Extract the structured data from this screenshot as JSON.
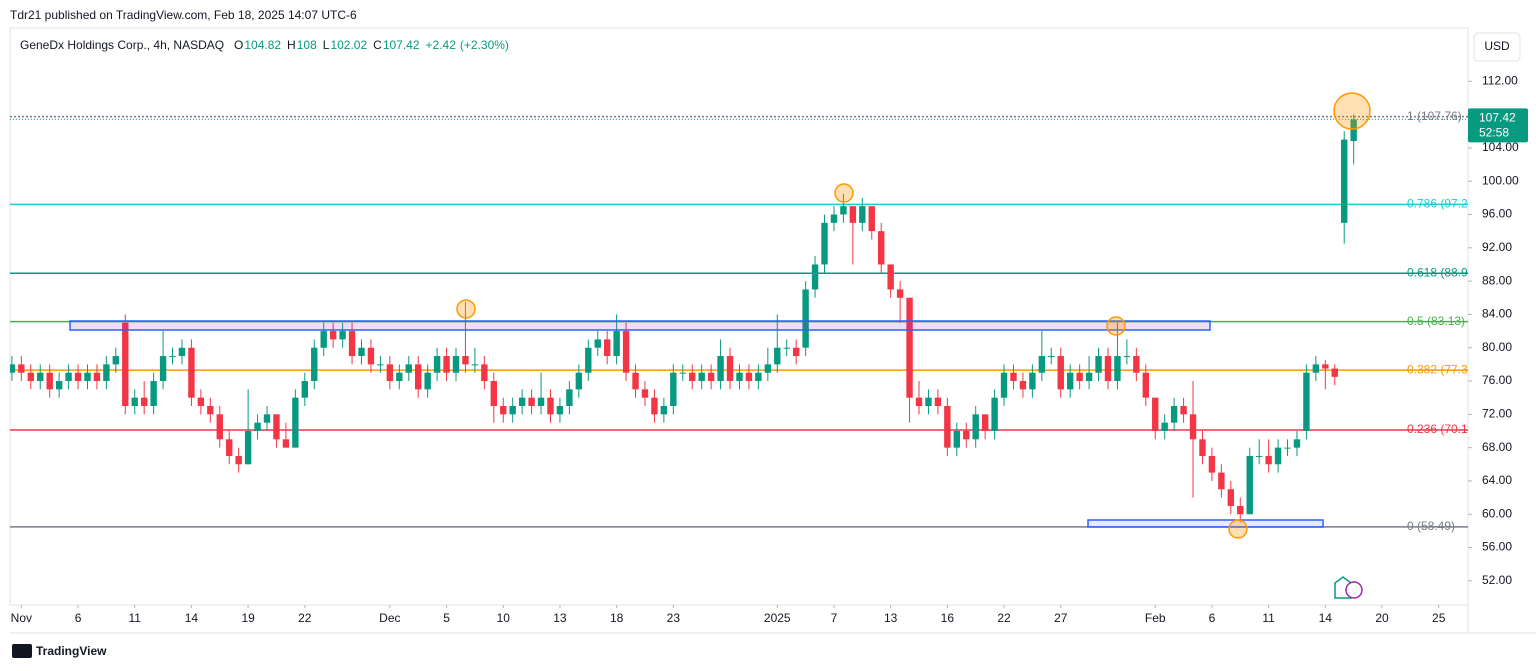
{
  "chart_data": {
    "type": "candlestick",
    "attribution": "Tdr21 published on TradingView.com, Feb 18, 2025 14:07 UTC-6",
    "legend": {
      "symbol": "GeneDx Holdings Corp., 4h, NASDAQ",
      "open": {
        "label": "O",
        "value": 104.82
      },
      "high": {
        "label": "H",
        "value": 108.0
      },
      "low": {
        "label": "L",
        "value": 102.02
      },
      "close": {
        "label": "C",
        "value": 107.42
      },
      "change": {
        "value": 2.42,
        "label": "+2.42"
      },
      "change_pct": {
        "value": 2.3,
        "label": "(+2.30%)"
      }
    },
    "currency": "USD",
    "countdown": "52:58",
    "footer": "TradingView",
    "up_color": "#089981",
    "down_color": "#f23645",
    "ylim": [
      49.1,
      118.4
    ],
    "yticks": [
      {
        "value": 52,
        "label": "52.00"
      },
      {
        "value": 56,
        "label": "56.00"
      },
      {
        "value": 60,
        "label": "60.00"
      },
      {
        "value": 64,
        "label": "64.00"
      },
      {
        "value": 68,
        "label": "68.00"
      },
      {
        "value": 72,
        "label": "72.00"
      },
      {
        "value": 76,
        "label": "76.00"
      },
      {
        "value": 80,
        "label": "80.00"
      },
      {
        "value": 84,
        "label": "84.00"
      },
      {
        "value": 88,
        "label": "88.00"
      },
      {
        "value": 92,
        "label": "92.00"
      },
      {
        "value": 96,
        "label": "96.00"
      },
      {
        "value": 100,
        "label": "100.00"
      },
      {
        "value": 104,
        "label": "104.00"
      },
      {
        "value": 108,
        "label": "108.00"
      },
      {
        "value": 112,
        "label": "112.00"
      }
    ],
    "xlim": [
      -0.2,
      154.1
    ],
    "xticks": [
      {
        "value": 1,
        "label": "Nov"
      },
      {
        "value": 7,
        "label": "6"
      },
      {
        "value": 13,
        "label": "11"
      },
      {
        "value": 19,
        "label": "14"
      },
      {
        "value": 25,
        "label": "19"
      },
      {
        "value": 31,
        "label": "22"
      },
      {
        "value": 40,
        "label": "Dec"
      },
      {
        "value": 46,
        "label": "5"
      },
      {
        "value": 52,
        "label": "10"
      },
      {
        "value": 58,
        "label": "13"
      },
      {
        "value": 64,
        "label": "18"
      },
      {
        "value": 70,
        "label": "23"
      },
      {
        "value": 81,
        "label": "2025"
      },
      {
        "value": 87,
        "label": "7"
      },
      {
        "value": 93,
        "label": "13"
      },
      {
        "value": 99,
        "label": "16"
      },
      {
        "value": 105,
        "label": "22"
      },
      {
        "value": 111,
        "label": "27"
      },
      {
        "value": 121,
        "label": "Feb"
      },
      {
        "value": 127,
        "label": "6"
      },
      {
        "value": 133,
        "label": "11"
      },
      {
        "value": 139,
        "label": "14"
      },
      {
        "value": 145,
        "label": "20"
      },
      {
        "value": 151,
        "label": "25"
      }
    ],
    "levels": [
      {
        "value": 107.76,
        "label": "1 (107.76)",
        "color": "#787b86"
      },
      {
        "value": 97.22,
        "label": "0.786 (97.2",
        "color": "#26c6da"
      },
      {
        "value": 88.94,
        "label": "0.618 (88.9",
        "color": "#089981"
      },
      {
        "value": 83.13,
        "label": "0.5 (83.13)",
        "color": "#4caf50"
      },
      {
        "value": 77.31,
        "label": "0.382 (77.3",
        "color": "#ff9800"
      },
      {
        "value": 70.12,
        "label": "0.236 (70.1",
        "color": "#f23645"
      },
      {
        "value": 58.49,
        "label": "0 (58.49)",
        "color": "#787b86"
      }
    ],
    "ohlc": [
      [
        77,
        79,
        76,
        78
      ],
      [
        78,
        79,
        76,
        77
      ],
      [
        77,
        78,
        75,
        76
      ],
      [
        76,
        78,
        75,
        77
      ],
      [
        77,
        78,
        74,
        75
      ],
      [
        75,
        77,
        74,
        76
      ],
      [
        76,
        78,
        75,
        77
      ],
      [
        77,
        78,
        75,
        76
      ],
      [
        76,
        78,
        75,
        77
      ],
      [
        77,
        78,
        75,
        76
      ],
      [
        76,
        79,
        75,
        78
      ],
      [
        78,
        80,
        77,
        79
      ],
      [
        83,
        84,
        72,
        73
      ],
      [
        73,
        75,
        72,
        74
      ],
      [
        74,
        76,
        72,
        73
      ],
      [
        73,
        77,
        72,
        76
      ],
      [
        76,
        82,
        75,
        79
      ],
      [
        79,
        80,
        78,
        79
      ],
      [
        79,
        81,
        78,
        80
      ],
      [
        80,
        81,
        73,
        74
      ],
      [
        74,
        75,
        72,
        73
      ],
      [
        73,
        74,
        71,
        72
      ],
      [
        72,
        73,
        68,
        69
      ],
      [
        69,
        70,
        66,
        67
      ],
      [
        67,
        68,
        65,
        66
      ],
      [
        66,
        75,
        66,
        70
      ],
      [
        70,
        72,
        69,
        71
      ],
      [
        71,
        73,
        70,
        72
      ],
      [
        72,
        72,
        68,
        69
      ],
      [
        69,
        71,
        68,
        68
      ],
      [
        68,
        75,
        68,
        74
      ],
      [
        74,
        77,
        73,
        76
      ],
      [
        76,
        81,
        75,
        80
      ],
      [
        80,
        83,
        79,
        82
      ],
      [
        82,
        83,
        80,
        81
      ],
      [
        81,
        83,
        80,
        82
      ],
      [
        82,
        83,
        78,
        79
      ],
      [
        79,
        81,
        78,
        80
      ],
      [
        80,
        81,
        77,
        78
      ],
      [
        78,
        79,
        77,
        78
      ],
      [
        78,
        79,
        75,
        76
      ],
      [
        76,
        78,
        75,
        77
      ],
      [
        77,
        79,
        76,
        78
      ],
      [
        78,
        79,
        74,
        75
      ],
      [
        75,
        78,
        74,
        77
      ],
      [
        77,
        80,
        76,
        79
      ],
      [
        79,
        80,
        76,
        77
      ],
      [
        77,
        80,
        76,
        79
      ],
      [
        79,
        85.5,
        77,
        78
      ],
      [
        78,
        80,
        77,
        78
      ],
      [
        78,
        79,
        75,
        76
      ],
      [
        76,
        77,
        71,
        73
      ],
      [
        73,
        74,
        71,
        72
      ],
      [
        72,
        74,
        71,
        73
      ],
      [
        73,
        75,
        72,
        74
      ],
      [
        74,
        75,
        72,
        73
      ],
      [
        73,
        77,
        72,
        74
      ],
      [
        74,
        75,
        71,
        72
      ],
      [
        72,
        74,
        71,
        73
      ],
      [
        73,
        76,
        72,
        75
      ],
      [
        75,
        78,
        74,
        77
      ],
      [
        77,
        81,
        76,
        80
      ],
      [
        80,
        82,
        79,
        81
      ],
      [
        81,
        82,
        78,
        79
      ],
      [
        79,
        84,
        78,
        82
      ],
      [
        82,
        83,
        76,
        77
      ],
      [
        77,
        78,
        74,
        75
      ],
      [
        75,
        76,
        73,
        74
      ],
      [
        74,
        75,
        71,
        72
      ],
      [
        72,
        74,
        71,
        73
      ],
      [
        73,
        78,
        72,
        77
      ],
      [
        77,
        78,
        76,
        77
      ],
      [
        77,
        78,
        75,
        76
      ],
      [
        76,
        78,
        75,
        77
      ],
      [
        77,
        78,
        75,
        76
      ],
      [
        76,
        81,
        75,
        79
      ],
      [
        79,
        80,
        75,
        76
      ],
      [
        76,
        78,
        75,
        77
      ],
      [
        77,
        78,
        75,
        76
      ],
      [
        76,
        78,
        75,
        77
      ],
      [
        77,
        80,
        76,
        78
      ],
      [
        78,
        84,
        77,
        80
      ],
      [
        80,
        81,
        79,
        80
      ],
      [
        80,
        81,
        78,
        79
      ],
      [
        80,
        88,
        79,
        87
      ],
      [
        87,
        91,
        86,
        90
      ],
      [
        90,
        96,
        89,
        95
      ],
      [
        95,
        97,
        94,
        96
      ],
      [
        96,
        98.5,
        95,
        97
      ],
      [
        97,
        97,
        90,
        95
      ],
      [
        95,
        98,
        94,
        97
      ],
      [
        97,
        97,
        93,
        94
      ],
      [
        94,
        95,
        89,
        90
      ],
      [
        90,
        90,
        86,
        87
      ],
      [
        87,
        88,
        83,
        86
      ],
      [
        86,
        86,
        71,
        74
      ],
      [
        74,
        76,
        72,
        73
      ],
      [
        73,
        75,
        72,
        74
      ],
      [
        74,
        75,
        72,
        73
      ],
      [
        73,
        74,
        67,
        68
      ],
      [
        68,
        71,
        67,
        70
      ],
      [
        70,
        71,
        68,
        69
      ],
      [
        69,
        73,
        68,
        72
      ],
      [
        72,
        72,
        69,
        70
      ],
      [
        70,
        75,
        69,
        74
      ],
      [
        74,
        78,
        73,
        77
      ],
      [
        77,
        78,
        75,
        76
      ],
      [
        76,
        77,
        74,
        75
      ],
      [
        75,
        78,
        74,
        77
      ],
      [
        77,
        82,
        76,
        79
      ],
      [
        79,
        80,
        78,
        79
      ],
      [
        79,
        80,
        74,
        75
      ],
      [
        75,
        78,
        74,
        77
      ],
      [
        77,
        78,
        75,
        76
      ],
      [
        76,
        79,
        75,
        77
      ],
      [
        77,
        80,
        76,
        79
      ],
      [
        79,
        80,
        75,
        76
      ],
      [
        76,
        83,
        75,
        79
      ],
      [
        79,
        81,
        78,
        79
      ],
      [
        79,
        80,
        76,
        77
      ],
      [
        77,
        78,
        73,
        74
      ],
      [
        74,
        74,
        69,
        70
      ],
      [
        70,
        72,
        69,
        71
      ],
      [
        71,
        74,
        70,
        73
      ],
      [
        73,
        74,
        71,
        72
      ],
      [
        72,
        76,
        62,
        69
      ],
      [
        69,
        70,
        66,
        67
      ],
      [
        67,
        68,
        64,
        65
      ],
      [
        65,
        66,
        62,
        63
      ],
      [
        63,
        64,
        60,
        61
      ],
      [
        61,
        62,
        59,
        60
      ],
      [
        60,
        68,
        60,
        67
      ],
      [
        67,
        69,
        66,
        67
      ],
      [
        67,
        69,
        65,
        66
      ],
      [
        66,
        69,
        65,
        68
      ],
      [
        68,
        69,
        67,
        68
      ],
      [
        68,
        70,
        67,
        69
      ],
      [
        70,
        78,
        69,
        77
      ],
      [
        77,
        79,
        76,
        78
      ],
      [
        78,
        78.5,
        75,
        77.5
      ],
      [
        77.5,
        78,
        75.5,
        76.5
      ],
      [
        95,
        106,
        92.5,
        105
      ],
      [
        104.82,
        108,
        102.02,
        107.42
      ]
    ]
  }
}
